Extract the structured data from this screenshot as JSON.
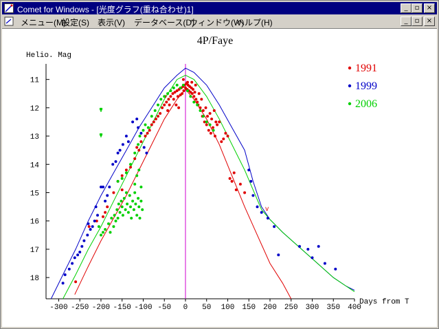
{
  "window": {
    "title": "Comet for Windows - [光度グラフ(重ね合わせ)1]",
    "controls": [
      "_",
      "▫",
      "×"
    ]
  },
  "menubar": {
    "items": [
      "メニュー(M)",
      "設定(S)",
      "表示(V)",
      "データベース(D)",
      "ウィンドウ(W)",
      "ヘルプ(H)"
    ]
  },
  "chart_data": {
    "type": "scatter",
    "title": "4P/Faye",
    "ylabel": "Helio. Mag",
    "xlabel": "Days from T",
    "xlim": [
      -330,
      400
    ],
    "ylim": [
      18.75,
      10.45
    ],
    "y_inverted": true,
    "x_ticks": [
      -300,
      -250,
      -200,
      -150,
      -100,
      -50,
      0,
      50,
      100,
      150,
      200,
      250,
      300,
      350,
      400
    ],
    "y_ticks": [
      11,
      12,
      13,
      14,
      15,
      16,
      17,
      18
    ],
    "legend_position": "top-right",
    "vertical_line_x": 0,
    "colors": {
      "1991": "#e00000",
      "1999": "#0000c8",
      "2006": "#00d000",
      "marker": "#d000d0"
    },
    "series": [
      {
        "name": "1991",
        "color": "#e00000",
        "points": [
          [
            -260,
            18.15
          ],
          [
            -210,
            16.0
          ],
          [
            -195,
            15.85
          ],
          [
            -190,
            15.7
          ],
          [
            -185,
            15.5
          ],
          [
            -170,
            15.0
          ],
          [
            -160,
            14.6
          ],
          [
            -150,
            14.4
          ],
          [
            -140,
            14.2
          ],
          [
            -120,
            13.8
          ],
          [
            -110,
            13.5
          ],
          [
            -105,
            13.2
          ],
          [
            -95,
            13.0
          ],
          [
            -90,
            12.9
          ],
          [
            -80,
            12.6
          ],
          [
            -70,
            12.4
          ],
          [
            -65,
            12.3
          ],
          [
            -60,
            12.2
          ],
          [
            -55,
            12.0
          ],
          [
            -50,
            11.9
          ],
          [
            -45,
            11.8
          ],
          [
            -40,
            11.7
          ],
          [
            -35,
            11.6
          ],
          [
            -30,
            11.5
          ],
          [
            -25,
            11.45
          ],
          [
            -20,
            11.4
          ],
          [
            -18,
            11.6
          ],
          [
            -15,
            11.35
          ],
          [
            -12,
            11.55
          ],
          [
            -10,
            11.3
          ],
          [
            -8,
            11.5
          ],
          [
            -6,
            11.25
          ],
          [
            -4,
            11.4
          ],
          [
            -2,
            11.2
          ],
          [
            0,
            11.3
          ],
          [
            2,
            11.15
          ],
          [
            4,
            11.35
          ],
          [
            6,
            11.2
          ],
          [
            8,
            11.4
          ],
          [
            10,
            11.25
          ],
          [
            12,
            11.45
          ],
          [
            14,
            11.3
          ],
          [
            16,
            11.5
          ],
          [
            18,
            11.35
          ],
          [
            20,
            11.6
          ],
          [
            22,
            11.45
          ],
          [
            25,
            11.7
          ],
          [
            28,
            11.8
          ],
          [
            30,
            11.9
          ],
          [
            35,
            12.0
          ],
          [
            40,
            12.3
          ],
          [
            45,
            12.5
          ],
          [
            50,
            12.6
          ],
          [
            55,
            12.8
          ],
          [
            60,
            12.9
          ],
          [
            65,
            12.7
          ],
          [
            70,
            13.0
          ],
          [
            75,
            12.6
          ],
          [
            80,
            12.5
          ],
          [
            90,
            13.1
          ],
          [
            100,
            13.0
          ],
          [
            105,
            14.5
          ],
          [
            110,
            14.6
          ],
          [
            115,
            14.3
          ],
          [
            120,
            14.9
          ],
          [
            130,
            14.7
          ],
          [
            140,
            15.0
          ],
          [
            -228,
            16.2
          ],
          [
            -150,
            14.9
          ],
          [
            -130,
            14.1
          ],
          [
            -115,
            13.4
          ],
          [
            -85,
            12.8
          ],
          [
            -75,
            12.5
          ],
          [
            -48,
            11.6
          ],
          [
            -42,
            12.1
          ],
          [
            -38,
            11.9
          ],
          [
            -28,
            11.7
          ],
          [
            -22,
            11.9
          ],
          [
            -16,
            12.0
          ],
          [
            -5,
            11.0
          ],
          [
            5,
            11.1
          ],
          [
            15,
            11.1
          ],
          [
            24,
            11.2
          ],
          [
            32,
            11.5
          ],
          [
            38,
            11.7
          ],
          [
            42,
            12.1
          ],
          [
            48,
            12.0
          ],
          [
            52,
            12.3
          ],
          [
            58,
            12.2
          ],
          [
            62,
            12.4
          ],
          [
            68,
            12.1
          ],
          [
            72,
            12.5
          ],
          [
            85,
            13.2
          ],
          [
            95,
            12.9
          ]
        ]
      },
      {
        "name": "1999",
        "color": "#0000c8",
        "points": [
          [
            -290,
            18.2
          ],
          [
            -285,
            17.9
          ],
          [
            -275,
            17.7
          ],
          [
            -268,
            17.5
          ],
          [
            -262,
            17.3
          ],
          [
            -255,
            17.2
          ],
          [
            -250,
            17.1
          ],
          [
            -245,
            16.9
          ],
          [
            -240,
            16.7
          ],
          [
            -232,
            16.5
          ],
          [
            -225,
            16.3
          ],
          [
            -220,
            16.2
          ],
          [
            -215,
            16.0
          ],
          [
            -208,
            15.8
          ],
          [
            -200,
            14.8
          ],
          [
            -195,
            14.8
          ],
          [
            -190,
            15.3
          ],
          [
            -185,
            15.1
          ],
          [
            -180,
            14.8
          ],
          [
            -172,
            14.0
          ],
          [
            -165,
            13.9
          ],
          [
            -160,
            13.6
          ],
          [
            -155,
            13.5
          ],
          [
            -148,
            13.3
          ],
          [
            -140,
            13.0
          ],
          [
            -135,
            13.2
          ],
          [
            -125,
            12.5
          ],
          [
            -115,
            12.4
          ],
          [
            -112,
            12.7
          ],
          [
            -105,
            12.9
          ],
          [
            -98,
            13.4
          ],
          [
            -92,
            13.6
          ],
          [
            -230,
            16.1
          ],
          [
            -212,
            15.5
          ],
          [
            150,
            14.2
          ],
          [
            155,
            14.6
          ],
          [
            160,
            15.1
          ],
          [
            170,
            15.5
          ],
          [
            180,
            15.7
          ],
          [
            195,
            15.9
          ],
          [
            210,
            16.2
          ],
          [
            220,
            17.2
          ],
          [
            270,
            16.9
          ],
          [
            290,
            17.0
          ],
          [
            300,
            17.3
          ],
          [
            315,
            16.9
          ],
          [
            330,
            17.5
          ],
          [
            355,
            17.7
          ]
        ]
      },
      {
        "name": "2006",
        "color": "#00d000",
        "points": [
          [
            -200,
            12.05
          ],
          [
            -200,
            12.95
          ],
          [
            -205,
            16.2
          ],
          [
            -200,
            16.5
          ],
          [
            -195,
            16.4
          ],
          [
            -190,
            16.3
          ],
          [
            -182,
            16.1
          ],
          [
            -178,
            16.4
          ],
          [
            -175,
            15.9
          ],
          [
            -170,
            16.2
          ],
          [
            -168,
            15.8
          ],
          [
            -165,
            16.0
          ],
          [
            -162,
            15.6
          ],
          [
            -160,
            15.9
          ],
          [
            -158,
            15.4
          ],
          [
            -155,
            15.7
          ],
          [
            -152,
            15.3
          ],
          [
            -150,
            15.5
          ],
          [
            -148,
            15.8
          ],
          [
            -145,
            15.2
          ],
          [
            -142,
            15.6
          ],
          [
            -140,
            15.0
          ],
          [
            -138,
            15.4
          ],
          [
            -135,
            15.7
          ],
          [
            -132,
            15.1
          ],
          [
            -130,
            15.5
          ],
          [
            -128,
            15.9
          ],
          [
            -125,
            15.3
          ],
          [
            -122,
            15.6
          ],
          [
            -120,
            15.0
          ],
          [
            -118,
            15.4
          ],
          [
            -115,
            15.8
          ],
          [
            -112,
            15.2
          ],
          [
            -110,
            15.5
          ],
          [
            -108,
            15.9
          ],
          [
            -105,
            15.3
          ],
          [
            -102,
            15.6
          ],
          [
            -120,
            14.7
          ],
          [
            -115,
            14.4
          ],
          [
            -110,
            14.2
          ],
          [
            -105,
            14.8
          ],
          [
            -160,
            14.6
          ],
          [
            -150,
            14.5
          ],
          [
            -140,
            14.3
          ],
          [
            -130,
            14.0
          ],
          [
            -120,
            13.6
          ],
          [
            -112,
            13.3
          ],
          [
            -108,
            13.0
          ],
          [
            -100,
            12.8
          ],
          [
            -95,
            12.6
          ],
          [
            -88,
            12.7
          ],
          [
            -80,
            12.3
          ],
          [
            -72,
            12.1
          ],
          [
            -65,
            11.9
          ],
          [
            -58,
            11.7
          ],
          [
            -50,
            11.6
          ],
          [
            -42,
            11.5
          ],
          [
            -35,
            11.4
          ],
          [
            -28,
            11.3
          ],
          [
            -20,
            11.2
          ],
          [
            -12,
            11.3
          ],
          [
            -5,
            11.2
          ],
          [
            5,
            11.4
          ],
          [
            12,
            11.6
          ],
          [
            20,
            11.8
          ],
          [
            28,
            11.9
          ],
          [
            35,
            12.1
          ],
          [
            42,
            12.3
          ],
          [
            50,
            12.5
          ],
          [
            58,
            12.6
          ],
          [
            66,
            12.8
          ]
        ]
      }
    ],
    "curves": [
      {
        "name": "1991",
        "color": "#e00000",
        "x": [
          -262,
          -230,
          -200,
          -170,
          -140,
          -110,
          -80,
          -50,
          -20,
          0,
          20,
          50,
          80,
          110,
          140,
          170,
          200,
          230,
          250
        ],
        "y": [
          18.6,
          17.6,
          16.7,
          15.9,
          15.1,
          14.2,
          13.3,
          12.4,
          11.7,
          11.35,
          11.7,
          12.4,
          13.3,
          14.4,
          15.5,
          16.5,
          17.5,
          18.2,
          18.75
        ]
      },
      {
        "name": "1999",
        "color": "#0000c8",
        "x": [
          -318,
          -290,
          -260,
          -230,
          -200,
          -170,
          -140,
          -110,
          -80,
          -50,
          -20,
          0,
          20,
          50,
          80,
          110,
          140,
          160,
          180,
          200,
          230,
          260,
          290,
          320,
          350,
          380,
          400
        ],
        "y": [
          18.75,
          17.9,
          17.0,
          16.0,
          15.1,
          14.3,
          13.5,
          12.7,
          12.0,
          11.3,
          10.85,
          10.6,
          10.75,
          11.2,
          11.9,
          12.7,
          13.5,
          14.6,
          15.5,
          15.95,
          16.4,
          16.8,
          17.2,
          17.6,
          18.0,
          18.3,
          18.45
        ]
      },
      {
        "name": "2006",
        "color": "#00d000",
        "x": [
          -290,
          -260,
          -230,
          -200,
          -170,
          -140,
          -110,
          -80,
          -50,
          -20,
          0,
          20,
          50,
          80,
          110,
          140,
          160,
          180,
          200,
          230,
          260,
          290,
          320,
          350,
          380,
          400
        ],
        "y": [
          18.75,
          17.9,
          17.0,
          16.2,
          15.3,
          14.4,
          13.5,
          12.6,
          11.7,
          11.0,
          10.85,
          11.0,
          11.6,
          12.4,
          13.3,
          14.2,
          14.9,
          15.6,
          15.95,
          16.4,
          16.8,
          17.2,
          17.6,
          18.0,
          18.3,
          18.5
        ]
      }
    ],
    "annotations": [
      {
        "text": "v",
        "x": -200,
        "y": 12.05,
        "color": "#00d000"
      },
      {
        "text": "v",
        "x": -200,
        "y": 12.95,
        "color": "#00d000"
      },
      {
        "text": "v",
        "x": 193,
        "y": 15.55,
        "color": "#e00000"
      }
    ]
  }
}
